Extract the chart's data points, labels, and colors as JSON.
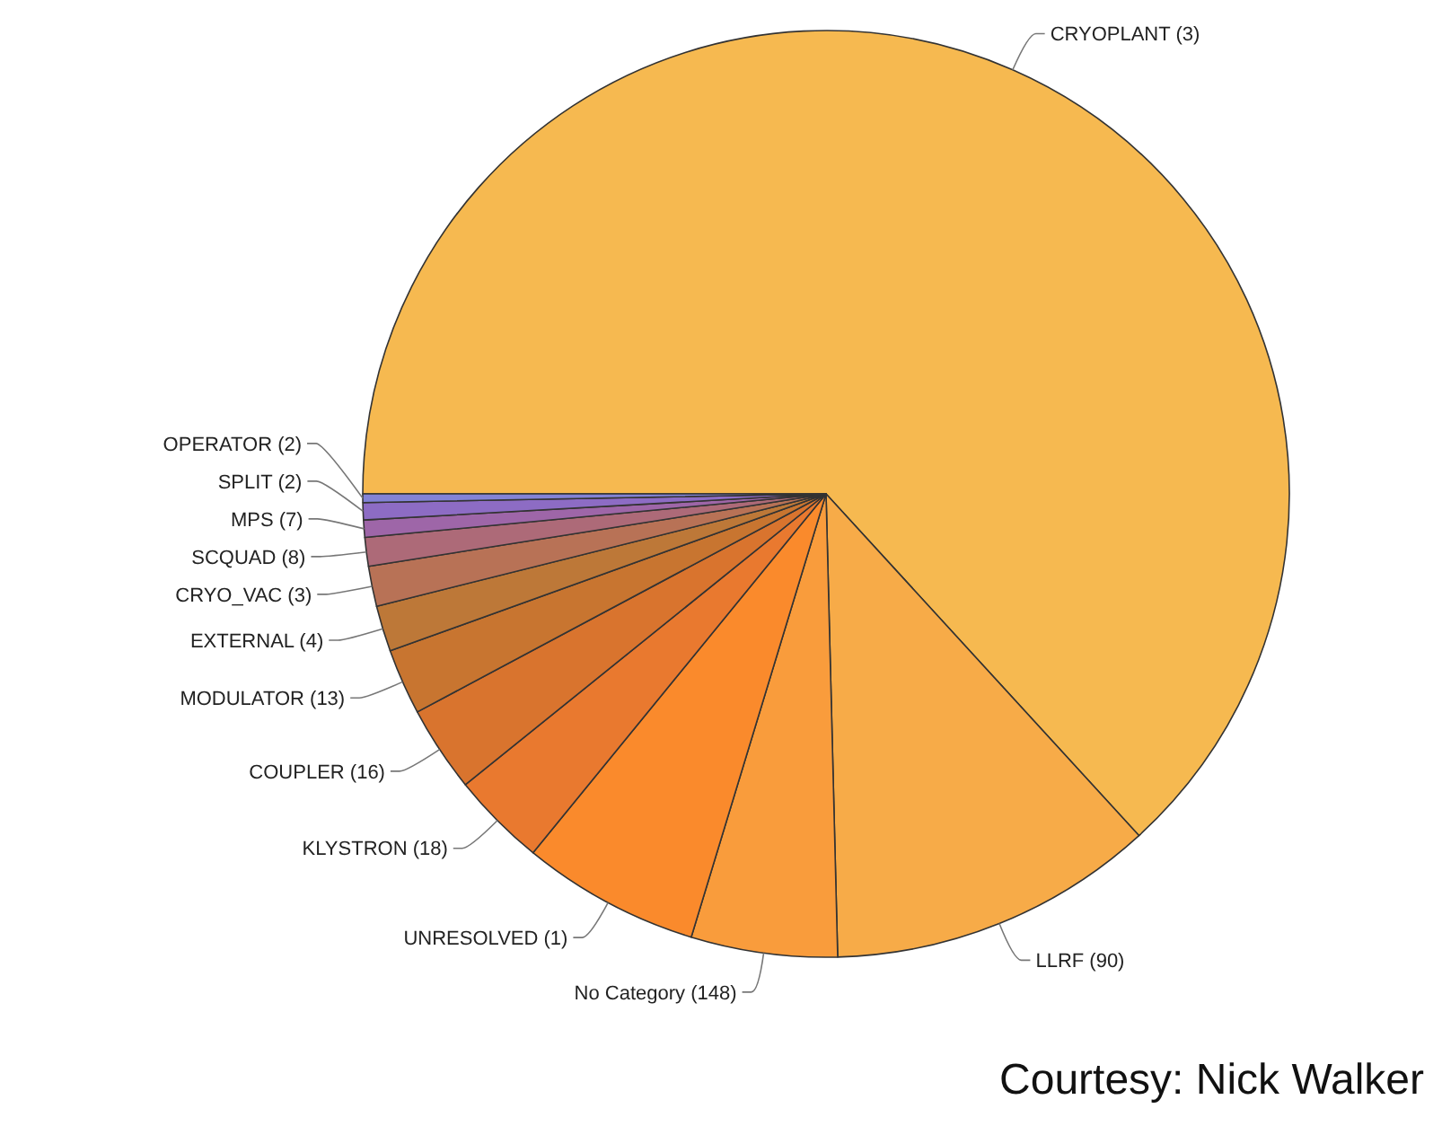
{
  "chart_data": {
    "type": "pie",
    "categories": [
      "CRYOPLANT (3)",
      "LLRF (90)",
      "No Category (148)",
      "UNRESOLVED (1)",
      "KLYSTRON (18)",
      "COUPLER (16)",
      "MODULATOR (13)",
      "EXTERNAL (4)",
      "CRYO_VAC (3)",
      "SCQUAD (8)",
      "MPS (7)",
      "SPLIT (2)",
      "OPERATOR (2)"
    ],
    "values": [
      63.2,
      11.4,
      5.1,
      6.2,
      3.3,
      3.0,
      2.3,
      1.6,
      1.4,
      1.0,
      0.6,
      0.6,
      0.3
    ],
    "colors": [
      "#f6b950",
      "#f7ab48",
      "#f99c3c",
      "#fa8a2c",
      "#e9792f",
      "#d9742e",
      "#c87530",
      "#bd7838",
      "#b87256",
      "#ad6a78",
      "#9e66a8",
      "#8d6cc4",
      "#8383d6"
    ],
    "annotations": [
      "Courtesy: Nick Walker"
    ]
  }
}
